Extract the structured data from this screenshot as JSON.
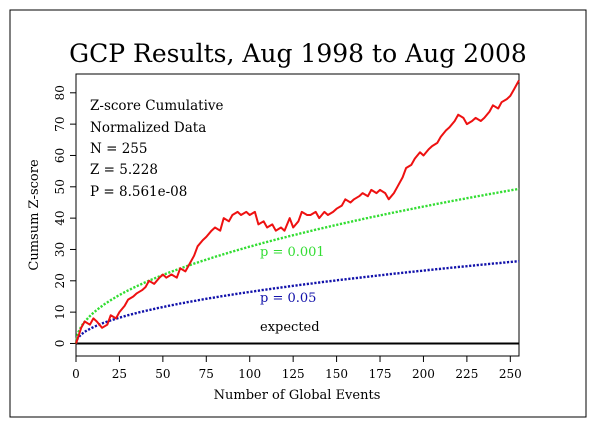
{
  "chart_data": {
    "type": "line",
    "title": "GCP Results, Aug 1998 to Aug 2008",
    "xlabel": "Number of Global Events",
    "ylabel": "Cumsum Z-score",
    "xlim": [
      0,
      255
    ],
    "ylim": [
      -4,
      86
    ],
    "xticks": [
      0,
      25,
      50,
      75,
      100,
      125,
      150,
      175,
      200,
      225,
      250
    ],
    "yticks": [
      0,
      10,
      20,
      30,
      40,
      50,
      60,
      70,
      80
    ],
    "annotations": [
      "Z-score Cumulative",
      "Normalized Data",
      "N = 255",
      "Z = 5.228",
      "P = 8.561e-08"
    ],
    "series": [
      {
        "name": "",
        "color": "#ee1111",
        "style": "solid",
        "x": [
          0,
          3,
          5,
          8,
          10,
          12,
          15,
          18,
          20,
          23,
          25,
          28,
          30,
          33,
          35,
          38,
          40,
          42,
          45,
          48,
          50,
          52,
          55,
          58,
          60,
          63,
          65,
          68,
          70,
          73,
          75,
          78,
          80,
          83,
          85,
          88,
          90,
          93,
          95,
          98,
          100,
          103,
          105,
          108,
          110,
          113,
          115,
          118,
          120,
          123,
          125,
          128,
          130,
          133,
          135,
          138,
          140,
          143,
          145,
          148,
          150,
          153,
          155,
          158,
          160,
          163,
          165,
          168,
          170,
          173,
          175,
          178,
          180,
          183,
          185,
          188,
          190,
          193,
          195,
          198,
          200,
          203,
          205,
          208,
          210,
          213,
          215,
          218,
          220,
          223,
          225,
          228,
          230,
          233,
          235,
          238,
          240,
          243,
          245,
          248,
          250,
          252,
          254,
          255
        ],
        "y": [
          0,
          5,
          7,
          6,
          8,
          7,
          5,
          6,
          9,
          8,
          10,
          12,
          14,
          15,
          16,
          17,
          18,
          20,
          19,
          21,
          22,
          21,
          22,
          21,
          24,
          23,
          25,
          28,
          31,
          33,
          34,
          36,
          37,
          36,
          40,
          39,
          41,
          42,
          41,
          42,
          41,
          42,
          38,
          39,
          37,
          38,
          36,
          37,
          36,
          40,
          37,
          39,
          42,
          41,
          41,
          42,
          40,
          42,
          41,
          42,
          43,
          44,
          46,
          45,
          46,
          47,
          48,
          47,
          49,
          48,
          49,
          48,
          46,
          48,
          50,
          53,
          56,
          57,
          59,
          61,
          60,
          62,
          63,
          64,
          66,
          68,
          69,
          71,
          73,
          72,
          70,
          71,
          72,
          71,
          72,
          74,
          76,
          75,
          77,
          78,
          79,
          81,
          83,
          84
        ]
      },
      {
        "name": "p = 0.001",
        "color": "#33dd33",
        "style": "dotted",
        "formula": "3.09 * sqrt(x)"
      },
      {
        "name": "p = 0.05",
        "color": "#1111aa",
        "style": "dotted",
        "formula": "1.645 * sqrt(x)"
      },
      {
        "name": "expected",
        "color": "#000000",
        "style": "solid",
        "formula": "0"
      }
    ],
    "curve_labels": [
      {
        "text": "p = 0.001",
        "color": "#33dd33"
      },
      {
        "text": "p = 0.05",
        "color": "#1111aa"
      },
      {
        "text": "expected",
        "color": "#000000"
      }
    ],
    "grid": false
  }
}
